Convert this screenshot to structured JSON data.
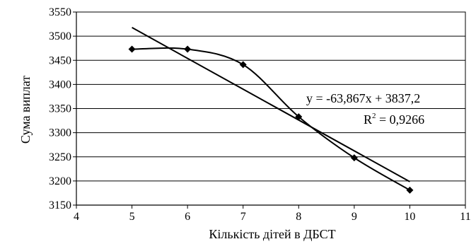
{
  "chart_data": {
    "type": "scatter",
    "xlabel": "Кількість дітей в ДБСТ",
    "ylabel": "Сума виплат",
    "xlim": [
      4,
      11
    ],
    "ylim": [
      3150,
      3550
    ],
    "x_ticks": [
      "4",
      "5",
      "6",
      "7",
      "8",
      "9",
      "10",
      "11"
    ],
    "y_ticks": [
      "3150",
      "3200",
      "3250",
      "3300",
      "3350",
      "3400",
      "3450",
      "3500",
      "3550"
    ],
    "grid": "horizontal",
    "series": [
      {
        "x": [
          5,
          6,
          7,
          8,
          9,
          10
        ],
        "y": [
          3473,
          3473,
          3441,
          3333,
          3248,
          3181
        ],
        "marker": "diamond",
        "line": "smoothed"
      }
    ],
    "trendline": {
      "slope": -63.867,
      "intercept": 3837.2,
      "x_range": [
        5,
        10
      ]
    },
    "annotations": {
      "equation": "y = -63,867x + 3837,2",
      "r2_prefix": "R",
      "r2_sup": "2",
      "r2_value": " = 0,9266"
    }
  }
}
